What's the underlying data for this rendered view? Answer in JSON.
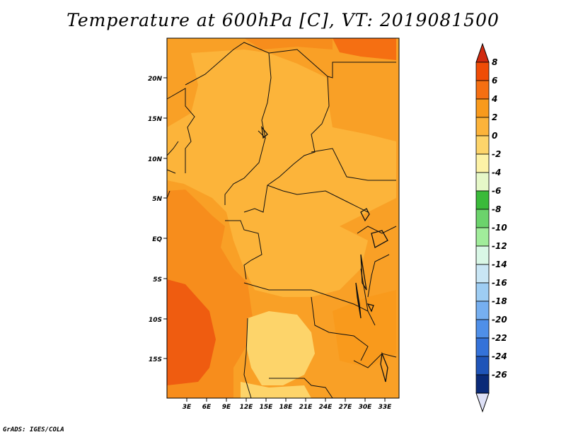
{
  "title": "Temperature at 600hPa [C], VT: 2019081500",
  "credit": "GrADS: IGES/COLA",
  "map": {
    "lat_labels": [
      "20N",
      "15N",
      "10N",
      "5N",
      "EQ",
      "5S",
      "10S",
      "15S"
    ],
    "lon_labels": [
      "3E",
      "6E",
      "9E",
      "12E",
      "15E",
      "18E",
      "21E",
      "24E",
      "27E",
      "30E",
      "33E"
    ]
  },
  "colorbar": {
    "labels": [
      "8",
      "6",
      "4",
      "2",
      "0",
      "-2",
      "-4",
      "-6",
      "-8",
      "-10",
      "-12",
      "-14",
      "-16",
      "-18",
      "-20",
      "-22",
      "-24",
      "-26"
    ],
    "colors": [
      "#ef4c06",
      "#f56f12",
      "#f99a1c",
      "#fcb33a",
      "#fdd46a",
      "#fdf2a6",
      "#e6f8c8",
      "#3aba3a",
      "#6cd36c",
      "#a1ec9b",
      "#d9f7e6",
      "#c9e6f5",
      "#9ecdf3",
      "#76aff0",
      "#4f8fe8",
      "#3472d9",
      "#1f54b8",
      "#0a2a78"
    ],
    "top_arrow_color": "#d12a0f",
    "bottom_arrow_color": "#dde0f6"
  }
}
